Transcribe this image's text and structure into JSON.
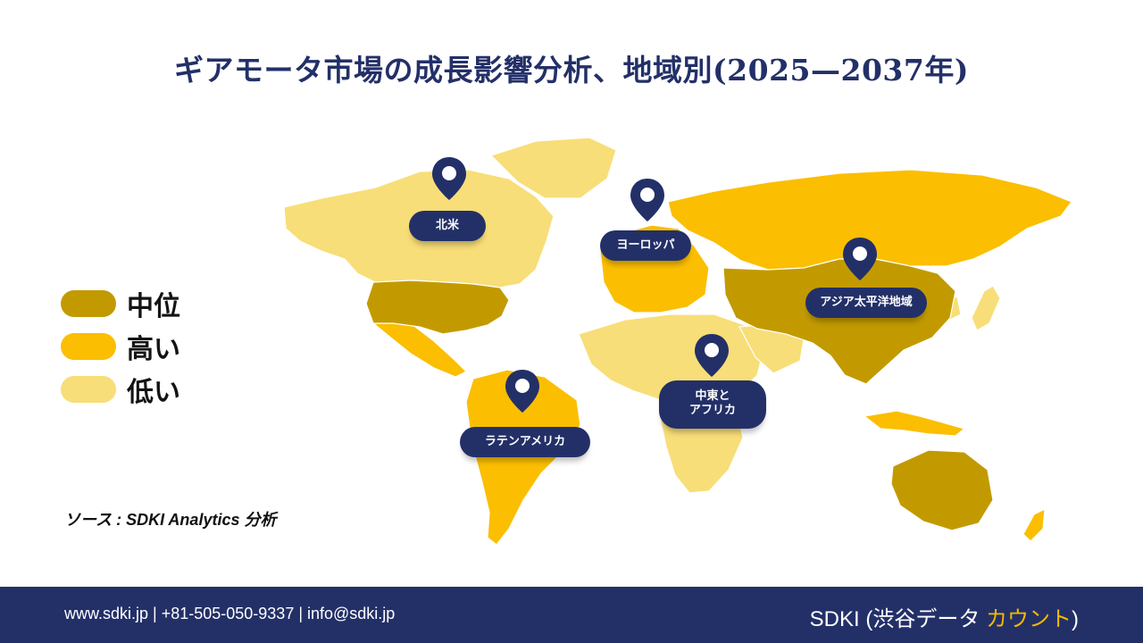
{
  "title": "ギアモータ市場の成長影響分析、地域別(2025—2037年)",
  "colors": {
    "medium": "#c29a00",
    "high": "#fbbe00",
    "low": "#f8de78",
    "pin": "#233068",
    "footer": "#233068",
    "brand_accent": "#f5b800"
  },
  "legend": [
    {
      "label": "中位",
      "level": "medium"
    },
    {
      "label": "高い",
      "level": "high"
    },
    {
      "label": "低い",
      "level": "low"
    }
  ],
  "regions": [
    {
      "label": "北米",
      "level": "medium"
    },
    {
      "label": "ヨーロッパ",
      "level": "high"
    },
    {
      "label": "アジア太平洋地域",
      "level": "medium"
    },
    {
      "label_line1": "中東と",
      "label_line2": "アフリカ",
      "level": "low"
    },
    {
      "label": "ラテンアメリカ",
      "level": "high"
    }
  ],
  "source": "ソース : SDKI Analytics 分析",
  "footer": {
    "contact": "www.sdki.jp | +81-505-050-9337 | info@sdki.jp",
    "brand_prefix": "SDKI (渋谷データ ",
    "brand_accent": "カウント",
    "brand_suffix": ")"
  }
}
